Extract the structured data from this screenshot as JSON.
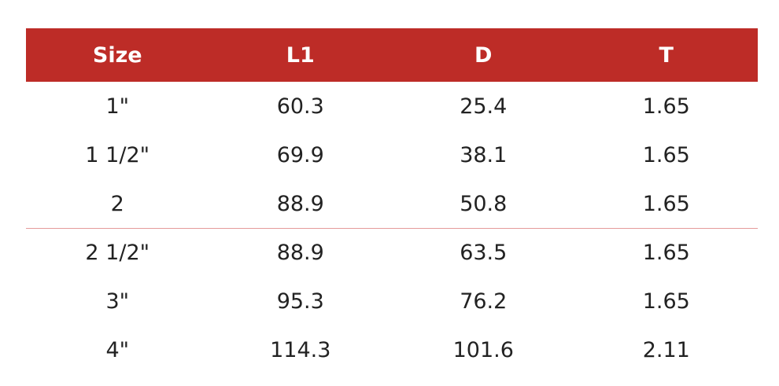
{
  "table": {
    "header": [
      "Size",
      "L1",
      "D",
      "T"
    ],
    "rows": [
      [
        "1\"",
        "60.3",
        "25.4",
        "1.65"
      ],
      [
        "1 1/2\"",
        "69.9",
        "38.1",
        "1.65"
      ],
      [
        "2",
        "88.9",
        "50.8",
        "1.65"
      ],
      [
        "2 1/2\"",
        "88.9",
        "63.5",
        "1.65"
      ],
      [
        "3\"",
        "95.3",
        "76.2",
        "1.65"
      ],
      [
        "4\"",
        "114.3",
        "101.6",
        "2.11"
      ]
    ]
  }
}
